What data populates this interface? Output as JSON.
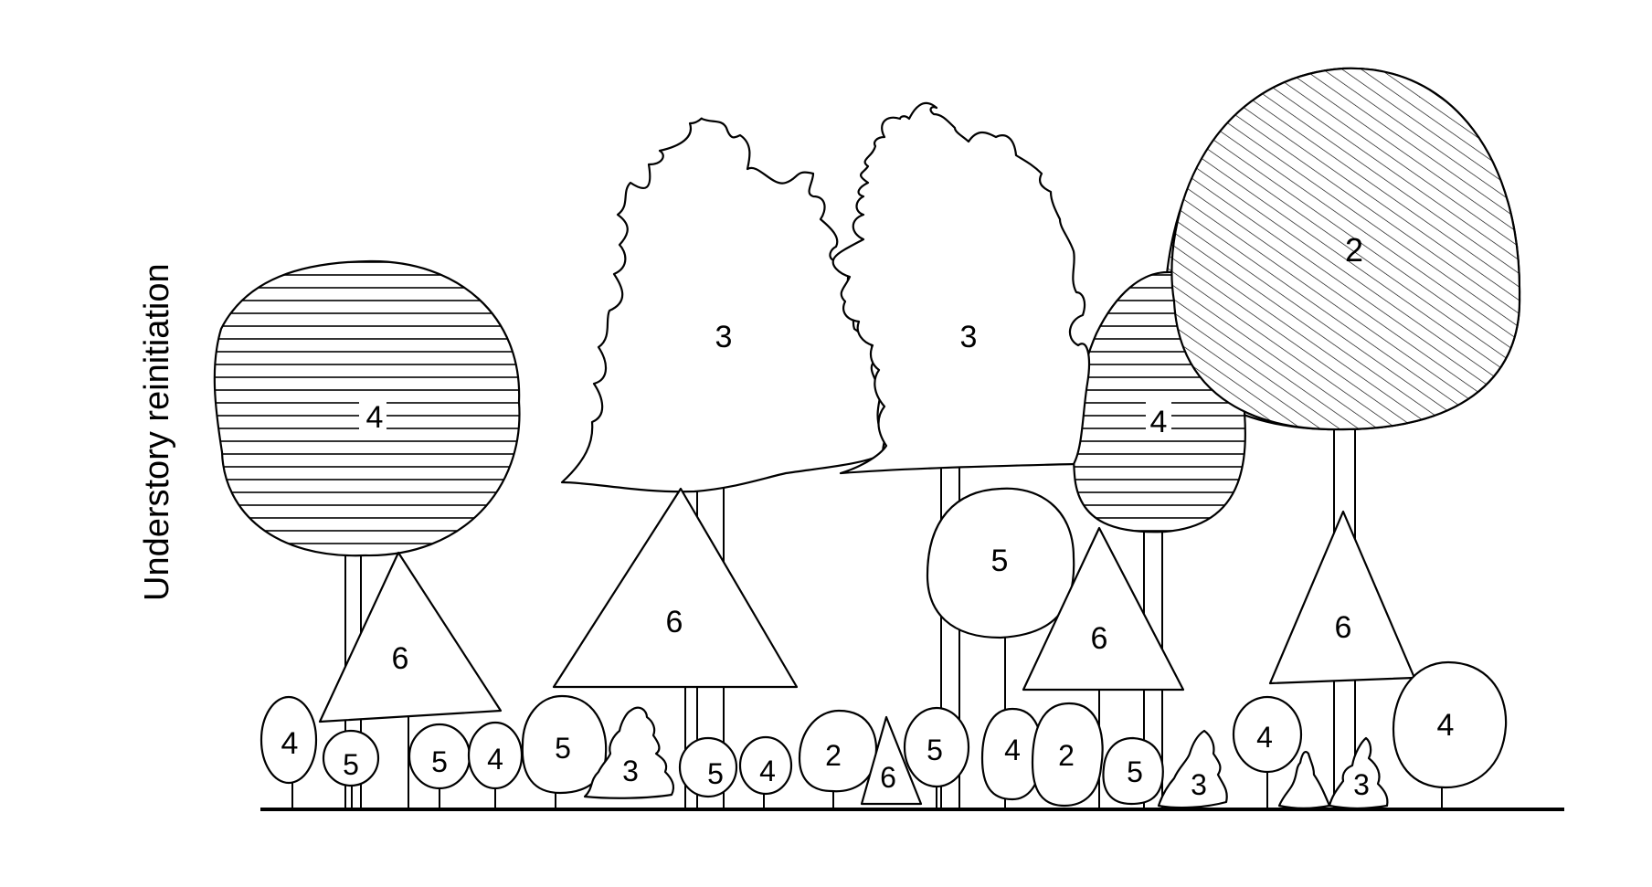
{
  "title": "Understory reinitiation",
  "colors": {
    "line": "#000000",
    "background": "#ffffff"
  },
  "legend_codes": {
    "crowns": [
      {
        "id": "tree-a",
        "label": "4",
        "fill": "horizontal-hatch"
      },
      {
        "id": "tree-b",
        "label": "3",
        "fill": "plain"
      },
      {
        "id": "tree-c",
        "label": "3",
        "fill": "plain"
      },
      {
        "id": "tree-d",
        "label": "4",
        "fill": "horizontal-hatch"
      },
      {
        "id": "tree-e",
        "label": "2",
        "fill": "diagonal-hatch"
      },
      {
        "id": "mid-1",
        "label": "6"
      },
      {
        "id": "mid-2",
        "label": "6"
      },
      {
        "id": "mid-3",
        "label": "5"
      },
      {
        "id": "mid-4",
        "label": "6"
      },
      {
        "id": "mid-5",
        "label": "6"
      }
    ],
    "understory": [
      "4",
      "5",
      "5",
      "4",
      "5",
      "3",
      "5",
      "4",
      "2",
      "6",
      "5",
      "4",
      "2",
      "5",
      "3",
      "4",
      "3",
      "4"
    ]
  }
}
